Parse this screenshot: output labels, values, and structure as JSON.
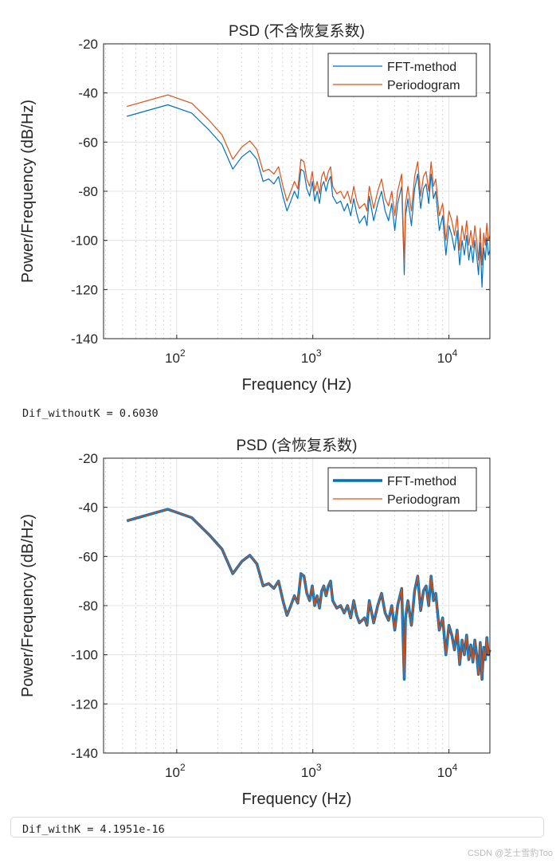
{
  "colors": {
    "fft": "#0072BD",
    "periodogram": "#D95319",
    "grid": "#e3e3e3",
    "axis": "#262626"
  },
  "outputs": {
    "dif_without": "Dif_withoutK = 0.6030",
    "dif_with": "Dif_withK = 4.1951e-16"
  },
  "watermark": "CSDN @芝士雪豹Too",
  "chart_data": [
    {
      "type": "line",
      "title": "PSD (不含恢复系数)",
      "xlabel": "Frequency (Hz)",
      "ylabel": "Power/Frequency (dB/Hz)",
      "xscale": "log",
      "xlim": [
        29,
        20000
      ],
      "ylim": [
        -140,
        -20
      ],
      "yticks": [
        -20,
        -40,
        -60,
        -80,
        -100,
        -120,
        -140
      ],
      "xticks": [
        100,
        1000,
        10000
      ],
      "xtick_labels": [
        "10",
        "10",
        "10"
      ],
      "xtick_exps": [
        "2",
        "3",
        "4"
      ],
      "grid": true,
      "legend": "top-right",
      "x": [
        43,
        86,
        129,
        172,
        215,
        258,
        301,
        345,
        388,
        431,
        474,
        517,
        560,
        603,
        646,
        689,
        732,
        775,
        818,
        861,
        904,
        947,
        990,
        1033,
        1076,
        1119,
        1162,
        1205,
        1250,
        1300,
        1350,
        1400,
        1500,
        1600,
        1700,
        1800,
        1900,
        2000,
        2100,
        2200,
        2400,
        2500,
        2600,
        2800,
        3000,
        3200,
        3400,
        3600,
        3800,
        4000,
        4200,
        4500,
        4700,
        4800,
        5000,
        5300,
        5600,
        5900,
        6200,
        6500,
        6800,
        7100,
        7400,
        7700,
        8000,
        8500,
        9000,
        9500,
        10000,
        10500,
        11000,
        11500,
        12000,
        12500,
        13000,
        13500,
        14000,
        14500,
        15000,
        15500,
        16000,
        16500,
        17000,
        17500,
        18000,
        18500,
        19000,
        19500,
        20000
      ],
      "series": [
        {
          "name": "FFT-method",
          "width": 1.2,
          "values": [
            -49.5,
            -44.8,
            -48.2,
            -55,
            -61,
            -71,
            -66,
            -63.5,
            -67,
            -76,
            -75,
            -77,
            -74,
            -82,
            -88,
            -84,
            -80,
            -83,
            -71,
            -72,
            -79,
            -82,
            -76,
            -84,
            -80,
            -85,
            -78,
            -76,
            -80,
            -76,
            -74,
            -82,
            -85,
            -84,
            -88,
            -85,
            -90,
            -83,
            -89,
            -93,
            -90,
            -94,
            -82,
            -92,
            -85,
            -80,
            -88,
            -92,
            -85,
            -96,
            -85,
            -78,
            -114,
            -90,
            -83,
            -94,
            -79,
            -73,
            -87,
            -79,
            -77,
            -85,
            -73,
            -83,
            -80,
            -96,
            -90,
            -106,
            -94,
            -98,
            -104,
            -96,
            -110,
            -100,
            -106,
            -98,
            -108,
            -102,
            -109,
            -100,
            -106,
            -114,
            -101,
            -119,
            -103,
            -108,
            -99,
            -106,
            -104
          ]
        },
        {
          "name": "Periodogram",
          "width": 1.2,
          "values": [
            -45.5,
            -40.8,
            -44.2,
            -51,
            -57,
            -67,
            -62,
            -59.5,
            -63,
            -72,
            -71,
            -73,
            -70,
            -78,
            -84,
            -80,
            -76,
            -79,
            -67,
            -68,
            -75,
            -78,
            -72,
            -80,
            -76,
            -81,
            -74,
            -72,
            -76,
            -72,
            -70,
            -78,
            -81,
            -80,
            -83,
            -80,
            -85,
            -78,
            -84,
            -87,
            -85,
            -88,
            -78,
            -87,
            -80,
            -75,
            -83,
            -86,
            -80,
            -90,
            -80,
            -73,
            -110,
            -85,
            -78,
            -88,
            -74,
            -68,
            -82,
            -74,
            -72,
            -80,
            -68,
            -78,
            -75,
            -90,
            -85,
            -100,
            -88,
            -92,
            -98,
            -90,
            -104,
            -94,
            -100,
            -92,
            -102,
            -96,
            -103,
            -94,
            -100,
            -108,
            -95,
            -110,
            -97,
            -102,
            -93,
            -100,
            -98
          ]
        }
      ]
    },
    {
      "type": "line",
      "title": "PSD (含恢复系数)",
      "xlabel": "Frequency (Hz)",
      "ylabel": "Power/Frequency (dB/Hz)",
      "xscale": "log",
      "xlim": [
        29,
        20000
      ],
      "ylim": [
        -140,
        -20
      ],
      "yticks": [
        -20,
        -40,
        -60,
        -80,
        -100,
        -120,
        -140
      ],
      "xticks": [
        100,
        1000,
        10000
      ],
      "xtick_labels": [
        "10",
        "10",
        "10"
      ],
      "xtick_exps": [
        "2",
        "3",
        "4"
      ],
      "grid": true,
      "legend": "top-right",
      "x": [
        43,
        86,
        129,
        172,
        215,
        258,
        301,
        345,
        388,
        431,
        474,
        517,
        560,
        603,
        646,
        689,
        732,
        775,
        818,
        861,
        904,
        947,
        990,
        1033,
        1076,
        1119,
        1162,
        1205,
        1250,
        1300,
        1350,
        1400,
        1500,
        1600,
        1700,
        1800,
        1900,
        2000,
        2100,
        2200,
        2400,
        2500,
        2600,
        2800,
        3000,
        3200,
        3400,
        3600,
        3800,
        4000,
        4200,
        4500,
        4700,
        4800,
        5000,
        5300,
        5600,
        5900,
        6200,
        6500,
        6800,
        7100,
        7400,
        7700,
        8000,
        8500,
        9000,
        9500,
        10000,
        10500,
        11000,
        11500,
        12000,
        12500,
        13000,
        13500,
        14000,
        14500,
        15000,
        15500,
        16000,
        16500,
        17000,
        17500,
        18000,
        18500,
        19000,
        19500,
        20000
      ],
      "series": [
        {
          "name": "FFT-method",
          "width": 3.5,
          "values": [
            -45.5,
            -40.8,
            -44.2,
            -51,
            -57,
            -67,
            -62,
            -59.5,
            -63,
            -72,
            -71,
            -73,
            -70,
            -78,
            -84,
            -80,
            -76,
            -79,
            -67,
            -68,
            -75,
            -78,
            -72,
            -80,
            -76,
            -81,
            -74,
            -72,
            -76,
            -72,
            -70,
            -78,
            -81,
            -80,
            -83,
            -80,
            -85,
            -78,
            -84,
            -87,
            -85,
            -88,
            -78,
            -87,
            -80,
            -75,
            -83,
            -86,
            -80,
            -90,
            -80,
            -73,
            -110,
            -85,
            -78,
            -88,
            -74,
            -68,
            -82,
            -74,
            -72,
            -80,
            -68,
            -78,
            -75,
            -90,
            -85,
            -100,
            -88,
            -92,
            -98,
            -90,
            -104,
            -94,
            -100,
            -92,
            -102,
            -96,
            -103,
            -94,
            -100,
            -108,
            -95,
            -110,
            -97,
            -102,
            -93,
            -100,
            -98
          ]
        },
        {
          "name": "Periodogram",
          "width": 1.2,
          "values": [
            -45.5,
            -40.8,
            -44.2,
            -51,
            -57,
            -67,
            -62,
            -59.5,
            -63,
            -72,
            -71,
            -73,
            -70,
            -78,
            -84,
            -80,
            -76,
            -79,
            -67,
            -68,
            -75,
            -78,
            -72,
            -80,
            -76,
            -81,
            -74,
            -72,
            -76,
            -72,
            -70,
            -78,
            -81,
            -80,
            -83,
            -80,
            -85,
            -78,
            -84,
            -87,
            -85,
            -88,
            -78,
            -87,
            -80,
            -75,
            -83,
            -86,
            -80,
            -90,
            -80,
            -73,
            -110,
            -85,
            -78,
            -88,
            -74,
            -68,
            -82,
            -74,
            -72,
            -80,
            -68,
            -78,
            -75,
            -90,
            -85,
            -100,
            -88,
            -92,
            -98,
            -90,
            -104,
            -94,
            -100,
            -92,
            -102,
            -96,
            -103,
            -94,
            -100,
            -108,
            -95,
            -110,
            -97,
            -102,
            -93,
            -100,
            -98
          ]
        }
      ]
    }
  ]
}
